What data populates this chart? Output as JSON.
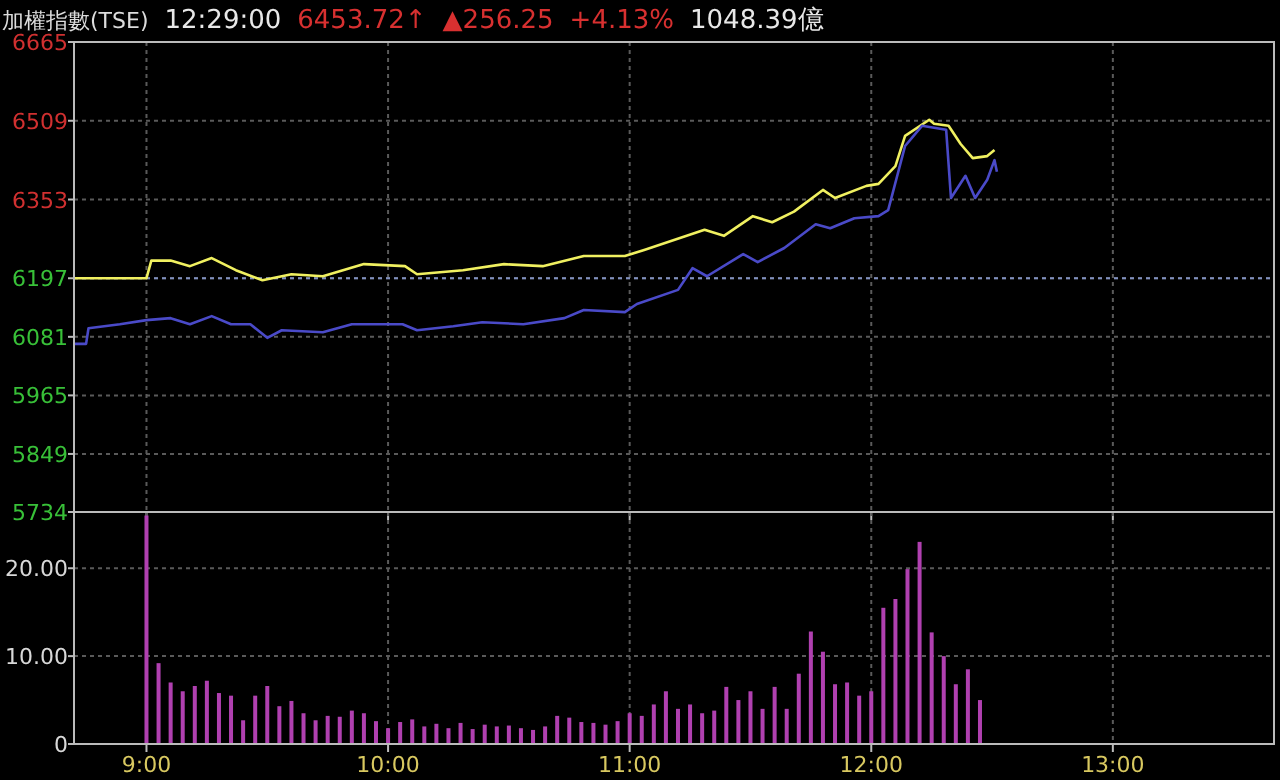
{
  "chart_data": [
    {
      "type": "line",
      "title": "加權指數(TSE)",
      "annotations": [
        "12:29:00",
        "6453.72↑",
        "▲256.25",
        "+4.13%",
        "1048.39億"
      ],
      "xlim": [
        8.7,
        13.667
      ],
      "ylim": [
        5734,
        6665
      ],
      "yticks": [
        5734,
        5849,
        5965,
        6081,
        6197,
        6353,
        6509,
        6665
      ],
      "xticks": [
        {
          "value": 9,
          "label": null
        },
        {
          "value": 10,
          "label": null
        },
        {
          "value": 11,
          "label": null
        },
        {
          "value": 12,
          "label": null
        },
        {
          "value": 13,
          "label": null
        }
      ],
      "tick_labels": "y",
      "grid": true,
      "ref_lines": [
        {
          "axis": "y",
          "value": 6197,
          "label": null,
          "color": "#8090c0",
          "line_style": "dotted"
        }
      ],
      "series": [
        {
          "color": "#f0f060",
          "x": [
            8.7,
            9.0,
            9.02,
            9.1,
            9.18,
            9.27,
            9.37,
            9.48,
            9.6,
            9.73,
            9.9,
            10.07,
            10.12,
            10.31,
            10.48,
            10.64,
            10.81,
            10.98,
            11.06,
            11.31,
            11.39,
            11.51,
            11.59,
            11.68,
            11.8,
            11.85,
            11.98,
            12.03,
            12.1,
            12.14,
            12.24,
            12.26,
            12.32,
            12.37,
            12.42,
            12.48,
            12.51
          ],
          "values": [
            6197,
            6197,
            6232,
            6232,
            6221,
            6237,
            6213,
            6193,
            6205,
            6201,
            6225,
            6221,
            6205,
            6213,
            6225,
            6221,
            6241,
            6241,
            6253,
            6293,
            6281,
            6320,
            6308,
            6329,
            6372,
            6356,
            6380,
            6384,
            6419,
            6479,
            6511,
            6503,
            6499,
            6463,
            6435,
            6439,
            6451
          ]
        },
        {
          "color": "#4a4ac8",
          "x": [
            8.7,
            8.75,
            8.76,
            8.89,
            9.0,
            9.1,
            9.18,
            9.27,
            9.35,
            9.43,
            9.5,
            9.56,
            9.73,
            9.85,
            10.06,
            10.12,
            10.27,
            10.39,
            10.56,
            10.73,
            10.81,
            10.98,
            11.03,
            11.2,
            11.26,
            11.32,
            11.47,
            11.53,
            11.64,
            11.77,
            11.83,
            11.93,
            12.03,
            12.07,
            12.14,
            12.21,
            12.31,
            12.33,
            12.39,
            12.43,
            12.48,
            12.51,
            12.52
          ],
          "values": [
            6067,
            6067,
            6098,
            6106,
            6114,
            6118,
            6106,
            6122,
            6106,
            6106,
            6079,
            6094,
            6090,
            6106,
            6106,
            6094,
            6102,
            6110,
            6106,
            6118,
            6134,
            6130,
            6146,
            6174,
            6217,
            6201,
            6245,
            6229,
            6257,
            6304,
            6296,
            6316,
            6320,
            6332,
            6459,
            6499,
            6491,
            6356,
            6400,
            6356,
            6392,
            6431,
            6408
          ]
        }
      ]
    },
    {
      "type": "bar",
      "xlim": [
        8.7,
        13.667
      ],
      "ylim": [
        0,
        26.4
      ],
      "yticks": [
        0,
        {
          "value": 10,
          "label": "10.00"
        },
        {
          "value": 20,
          "label": "20.00"
        }
      ],
      "xticks": [
        {
          "value": 9,
          "label": "9:00"
        },
        {
          "value": 10,
          "label": "10:00"
        },
        {
          "value": 11,
          "label": "11:00"
        },
        {
          "value": 12,
          "label": "12:00"
        },
        {
          "value": 13,
          "label": "13:00"
        }
      ],
      "grid": true,
      "color": "#b040b0",
      "x": [
        9.0,
        9.05,
        9.1,
        9.15,
        9.2,
        9.25,
        9.3,
        9.35,
        9.4,
        9.45,
        9.5,
        9.55,
        9.6,
        9.65,
        9.7,
        9.75,
        9.8,
        9.85,
        9.9,
        9.95,
        10.0,
        10.05,
        10.1,
        10.15,
        10.2,
        10.25,
        10.3,
        10.35,
        10.4,
        10.45,
        10.5,
        10.55,
        10.6,
        10.65,
        10.7,
        10.75,
        10.8,
        10.85,
        10.9,
        10.95,
        11.0,
        11.05,
        11.1,
        11.15,
        11.2,
        11.25,
        11.3,
        11.35,
        11.4,
        11.45,
        11.5,
        11.55,
        11.6,
        11.65,
        11.7,
        11.75,
        11.8,
        11.85,
        11.9,
        11.95,
        12.0,
        12.05,
        12.1,
        12.15,
        12.2,
        12.25,
        12.3,
        12.35,
        12.4,
        12.45
      ],
      "values": [
        26,
        9.2,
        7,
        6,
        6.6,
        7.2,
        5.8,
        5.5,
        2.7,
        5.5,
        6.6,
        4.3,
        4.9,
        3.5,
        2.7,
        3.2,
        3.1,
        3.8,
        3.5,
        2.6,
        1.8,
        2.5,
        2.8,
        2,
        2.3,
        1.8,
        2.4,
        1.7,
        2.2,
        2,
        2.1,
        1.8,
        1.6,
        2,
        3.2,
        3,
        2.5,
        2.4,
        2.2,
        2.6,
        3.5,
        3.2,
        4.5,
        6,
        4,
        4.5,
        3.5,
        3.8,
        6.5,
        5,
        6,
        4,
        6.5,
        4,
        8,
        12.8,
        10.5,
        6.8,
        7,
        5.5,
        6,
        15.5,
        16.5,
        19.9,
        23,
        12.7,
        10,
        6.8,
        8.5,
        5
      ]
    }
  ]
}
